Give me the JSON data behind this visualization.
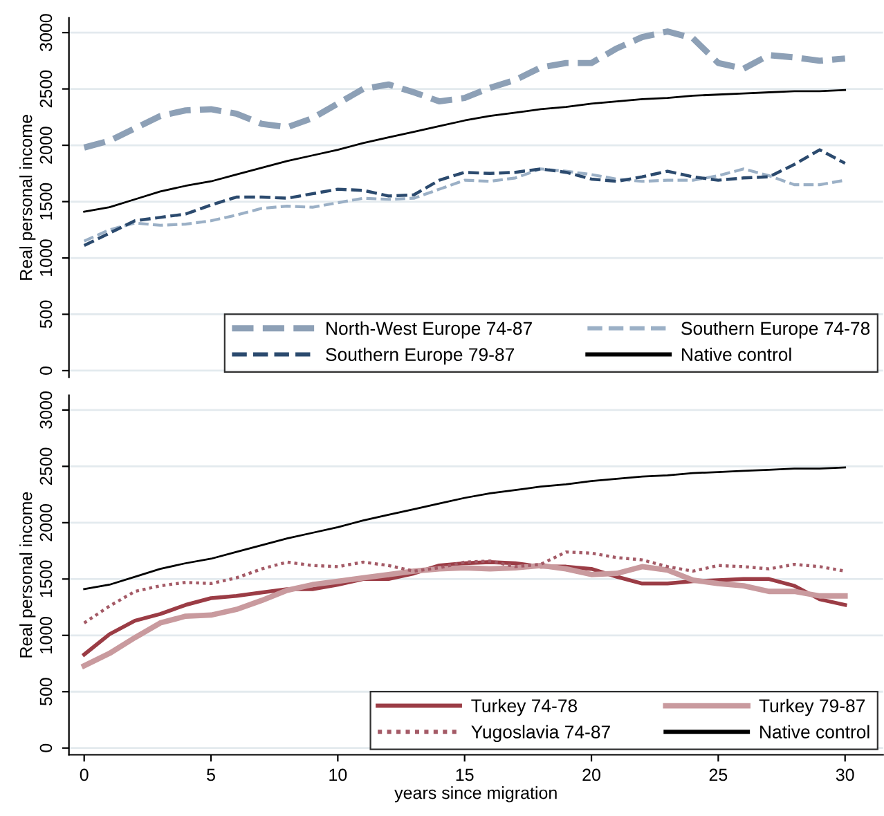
{
  "chart_data": [
    {
      "type": "line",
      "ylabel": "Real personal income",
      "x": [
        0,
        1,
        2,
        3,
        4,
        5,
        6,
        7,
        8,
        9,
        10,
        11,
        12,
        13,
        14,
        15,
        16,
        17,
        18,
        19,
        20,
        21,
        22,
        23,
        24,
        25,
        26,
        27,
        28,
        29,
        30
      ],
      "xlim": [
        -0.6,
        31.5
      ],
      "xticks": [
        0,
        5,
        10,
        15,
        20,
        25,
        30
      ],
      "ylim": [
        -60,
        3130
      ],
      "yticks": [
        0,
        500,
        1000,
        1500,
        2000,
        2500,
        3000
      ],
      "tick_labels": "y",
      "grid": "y",
      "legend": "bottom right",
      "series": [
        {
          "name": "North-West Europe 74-87",
          "color": "#8da0b6",
          "line_style": "dashed",
          "values": [
            1980,
            2040,
            2150,
            2260,
            2310,
            2320,
            2280,
            2190,
            2160,
            2240,
            2370,
            2500,
            2540,
            2470,
            2390,
            2420,
            2510,
            2580,
            2690,
            2730,
            2730,
            2860,
            2960,
            3010,
            2950,
            2730,
            2680,
            2800,
            2780,
            2750,
            2770
          ]
        },
        {
          "name": "Southern Europe 74-78",
          "color": "#9bb0c6",
          "line_style": "dashed",
          "values": [
            1150,
            1250,
            1310,
            1290,
            1300,
            1330,
            1380,
            1440,
            1460,
            1450,
            1490,
            1530,
            1520,
            1530,
            1610,
            1690,
            1680,
            1710,
            1790,
            1770,
            1740,
            1700,
            1680,
            1690,
            1690,
            1730,
            1790,
            1730,
            1650,
            1650,
            1690
          ]
        },
        {
          "name": "Southern Europe 79-87",
          "color": "#2b4a6e",
          "line_style": "dashed",
          "values": [
            1110,
            1220,
            1330,
            1360,
            1390,
            1470,
            1540,
            1540,
            1530,
            1570,
            1610,
            1600,
            1550,
            1560,
            1690,
            1760,
            1750,
            1760,
            1790,
            1760,
            1700,
            1680,
            1720,
            1770,
            1720,
            1690,
            1710,
            1720,
            1830,
            1960,
            1840
          ]
        },
        {
          "name": "Native control",
          "color": "#000000",
          "line_style": "solid",
          "values": [
            1410,
            1450,
            1520,
            1590,
            1640,
            1680,
            1740,
            1800,
            1860,
            1910,
            1960,
            2020,
            2070,
            2120,
            2170,
            2220,
            2260,
            2290,
            2320,
            2340,
            2370,
            2390,
            2410,
            2420,
            2440,
            2450,
            2460,
            2470,
            2480,
            2480,
            2490
          ]
        }
      ]
    },
    {
      "type": "line",
      "ylabel": "Real personal income",
      "xlabel": "years since migration",
      "x": [
        0,
        1,
        2,
        3,
        4,
        5,
        6,
        7,
        8,
        9,
        10,
        11,
        12,
        13,
        14,
        15,
        16,
        17,
        18,
        19,
        20,
        21,
        22,
        23,
        24,
        25,
        26,
        27,
        28,
        29,
        30
      ],
      "xlim": [
        -0.6,
        31.5
      ],
      "xticks": [
        0,
        5,
        10,
        15,
        20,
        25,
        30
      ],
      "ylim": [
        -60,
        3130
      ],
      "yticks": [
        0,
        500,
        1000,
        1500,
        2000,
        2500,
        3000
      ],
      "grid": "y",
      "legend": "bottom right",
      "series": [
        {
          "name": "Turkey 74-78",
          "color": "#9b3c45",
          "line_style": "solid",
          "values": [
            830,
            1010,
            1130,
            1190,
            1270,
            1330,
            1350,
            1380,
            1410,
            1410,
            1450,
            1500,
            1500,
            1550,
            1620,
            1640,
            1650,
            1640,
            1610,
            1610,
            1590,
            1520,
            1460,
            1460,
            1480,
            1490,
            1500,
            1500,
            1440,
            1320,
            1270
          ]
        },
        {
          "name": "Turkey 79-87",
          "color": "#c99a9e",
          "line_style": "solid",
          "values": [
            730,
            840,
            980,
            1110,
            1170,
            1180,
            1230,
            1310,
            1400,
            1450,
            1480,
            1510,
            1540,
            1570,
            1590,
            1600,
            1590,
            1600,
            1620,
            1590,
            1540,
            1550,
            1610,
            1580,
            1490,
            1460,
            1440,
            1390,
            1390,
            1350,
            1350
          ]
        },
        {
          "name": "Yugoslavia 74-87",
          "color": "#a45a66",
          "line_style": "dotted",
          "values": [
            1110,
            1260,
            1390,
            1440,
            1470,
            1460,
            1510,
            1590,
            1650,
            1620,
            1610,
            1650,
            1620,
            1570,
            1600,
            1650,
            1660,
            1610,
            1630,
            1740,
            1730,
            1690,
            1670,
            1610,
            1570,
            1620,
            1610,
            1590,
            1630,
            1610,
            1570
          ]
        },
        {
          "name": "Native control",
          "color": "#000000",
          "line_style": "solid",
          "values": [
            1410,
            1450,
            1520,
            1590,
            1640,
            1680,
            1740,
            1800,
            1860,
            1910,
            1960,
            2020,
            2070,
            2120,
            2170,
            2220,
            2260,
            2290,
            2320,
            2340,
            2370,
            2390,
            2410,
            2420,
            2440,
            2450,
            2460,
            2470,
            2480,
            2480,
            2490
          ]
        }
      ]
    }
  ]
}
